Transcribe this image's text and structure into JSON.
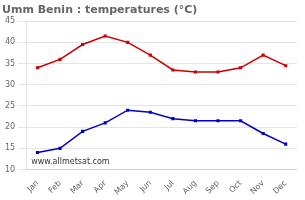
{
  "chart_data": {
    "type": "line",
    "title": "Umm Benin : temperatures (°C)",
    "categories": [
      "Jan",
      "Feb",
      "Mar",
      "Apr",
      "May",
      "Jun",
      "Jul",
      "Aug",
      "Sep",
      "Oct",
      "Nov",
      "Dec"
    ],
    "series": [
      {
        "color": "#cc0000",
        "marker": "square",
        "values": [
          34,
          36,
          39.5,
          41.5,
          40,
          37,
          33.5,
          33,
          33,
          34,
          37,
          34.5
        ]
      },
      {
        "color": "#0000cc",
        "marker": "square",
        "values": [
          14,
          15,
          19,
          21,
          24,
          23.5,
          22,
          21.5,
          21.5,
          21.5,
          18.5,
          16
        ]
      }
    ],
    "ylim": [
      10,
      45
    ],
    "yticks": [
      10,
      15,
      20,
      25,
      30,
      35,
      40,
      45
    ],
    "grid": true,
    "annotation": "www.allmetsat.com"
  }
}
